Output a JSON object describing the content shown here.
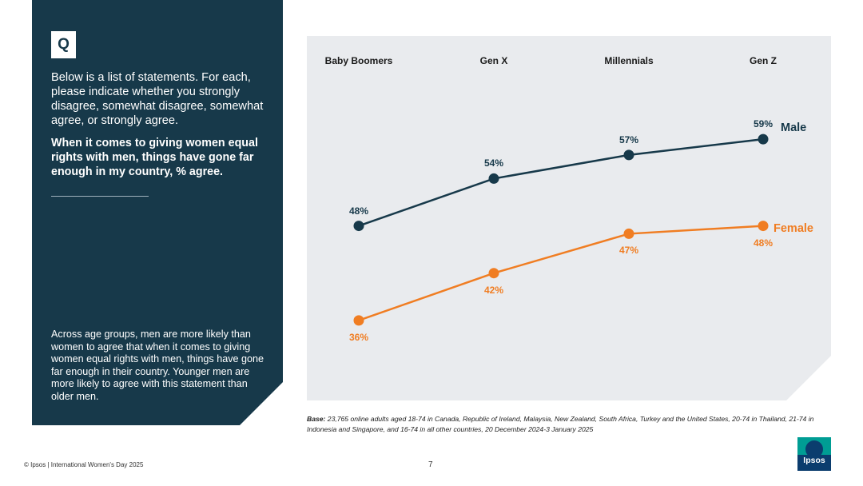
{
  "question": {
    "badge": "Q",
    "prompt": "Below is a list of statements. For each, please indicate whether you strongly disagree, somewhat disagree, somewhat agree, or strongly agree.",
    "statement": "When it comes to giving women equal rights with men, things have gone far enough in my country, % agree.",
    "summary": "Across age groups, men are more likely than women to agree that when it comes to giving women equal rights with men, things have gone far enough in their country. Younger men are more likely to agree with this statement than older men."
  },
  "chart_data": {
    "type": "line",
    "categories": [
      "Baby Boomers",
      "Gen X",
      "Millennials",
      "Gen Z"
    ],
    "series": [
      {
        "name": "Male",
        "values": [
          48,
          54,
          57,
          59
        ],
        "labels": [
          "48%",
          "54%",
          "57%",
          "59%"
        ],
        "color": "#17394a"
      },
      {
        "name": "Female",
        "values": [
          36,
          42,
          47,
          48
        ],
        "labels": [
          "36%",
          "42%",
          "47%",
          "48%"
        ],
        "color": "#f07d22"
      }
    ],
    "ylim": [
      30,
      65
    ],
    "title": "",
    "xlabel": "",
    "ylabel": ""
  },
  "base_note": {
    "label": "Base:",
    "text": "23,765 online adults aged 18-74 in Canada, Republic of Ireland, Malaysia, New Zealand, South Africa, Turkey and the United States, 20-74 in Thailand, 21-74 in Indonesia and Singapore, and 16-74 in all other countries, 20 December 2024-3 January 2025"
  },
  "footer": {
    "copyright": "© Ipsos | International Women's Day 2025",
    "page_number": "7",
    "logo_text": "Ipsos"
  },
  "colors": {
    "panel": "#17394a",
    "male": "#17394a",
    "female": "#f07d22",
    "chart_bg": "#e9ebee"
  }
}
